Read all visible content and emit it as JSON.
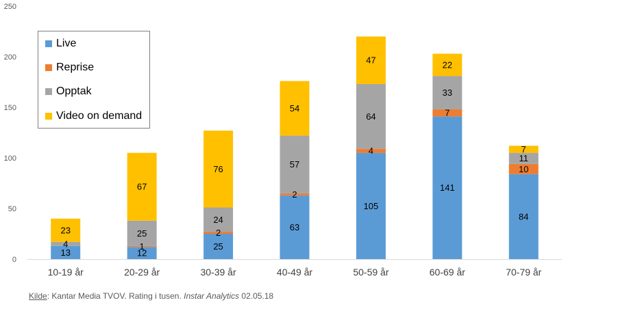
{
  "chart_data": {
    "type": "bar",
    "stacked": true,
    "categories": [
      "10-19 år",
      "20-29 år",
      "30-39 år",
      "40-49 år",
      "50-59 år",
      "60-69 år",
      "70-79 år"
    ],
    "series": [
      {
        "name": "Live",
        "color": "#5b9bd5",
        "values": [
          13,
          12,
          25,
          63,
          105,
          141,
          84
        ]
      },
      {
        "name": "Reprise",
        "color": "#ed7d31",
        "values": [
          0,
          1,
          2,
          2,
          4,
          7,
          10
        ]
      },
      {
        "name": "Opptak",
        "color": "#a5a5a5",
        "values": [
          4,
          25,
          24,
          57,
          64,
          33,
          11
        ]
      },
      {
        "name": "Video on demand",
        "color": "#ffc000",
        "values": [
          23,
          67,
          76,
          54,
          47,
          22,
          7
        ]
      }
    ],
    "ylim": [
      0,
      250
    ],
    "yticks": [
      0,
      50,
      100,
      150,
      200,
      250
    ],
    "grid": false,
    "legend": "top-left"
  },
  "source": {
    "kilde": "Kilde",
    "text": ": Kantar Media TVOV. Rating i tusen. ",
    "italic": "Instar Analytics",
    "date": " 02.05.18"
  }
}
